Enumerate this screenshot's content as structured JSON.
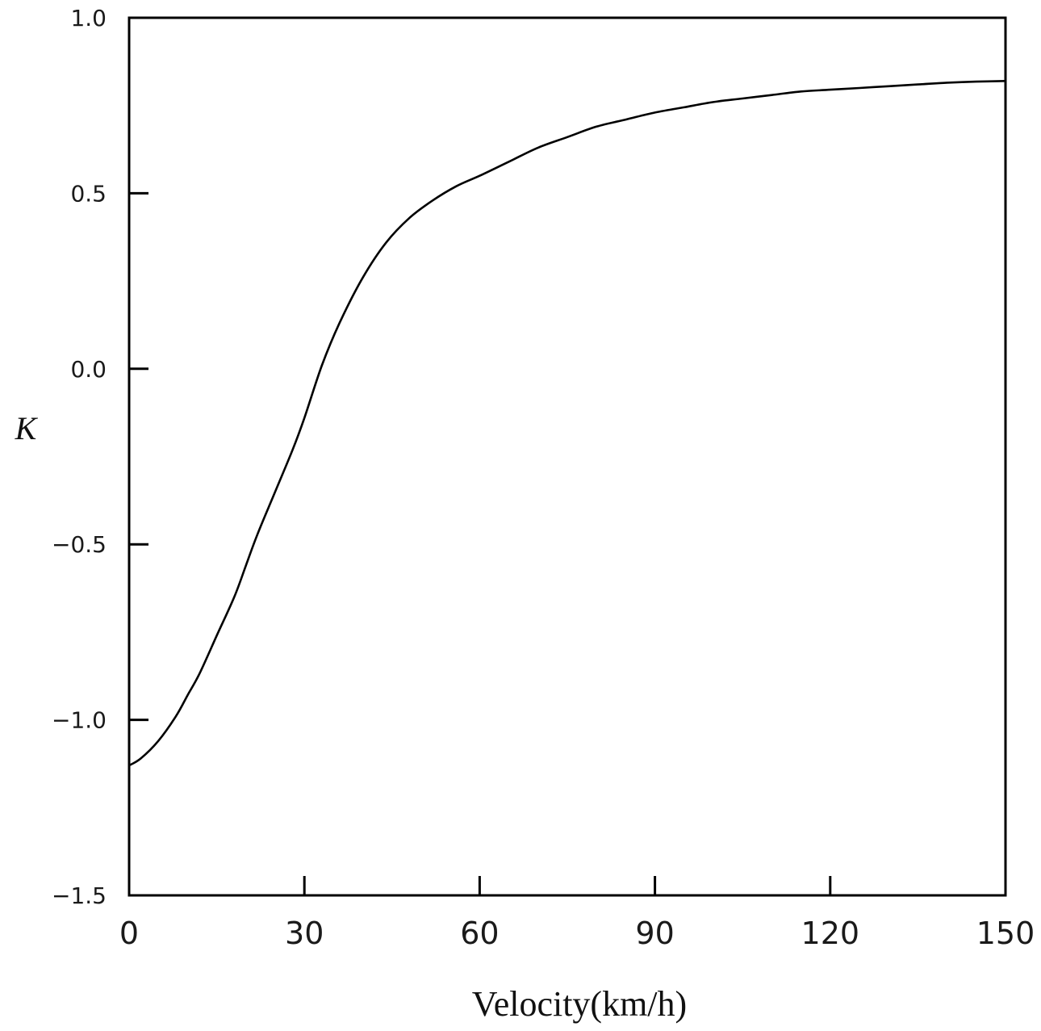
{
  "chart_data": {
    "type": "line",
    "title": "",
    "xlabel": "Velocity(km/h)",
    "ylabel": "K",
    "xlim": [
      0,
      150
    ],
    "ylim": [
      -1.5,
      1.0
    ],
    "x_ticks": [
      0,
      30,
      60,
      90,
      120,
      150
    ],
    "x_tick_labels": [
      "0",
      "30",
      "60",
      "90",
      "120",
      "150"
    ],
    "y_ticks": [
      1.0,
      0.5,
      0.0,
      -0.5,
      -1.0,
      -1.5
    ],
    "y_tick_labels": [
      "1.0",
      "0.5",
      "0.0",
      "−0.5",
      "−1.0",
      "−1.5"
    ],
    "grid": false,
    "series": [
      {
        "color": "#000000",
        "x": [
          0,
          2,
          5,
          8,
          10,
          12,
          15,
          18,
          20,
          22,
          25,
          28,
          30,
          33,
          36,
          40,
          44,
          48,
          52,
          56,
          60,
          65,
          70,
          75,
          80,
          85,
          90,
          95,
          100,
          105,
          110,
          115,
          120,
          125,
          130,
          135,
          140,
          145,
          150
        ],
        "y": [
          -1.13,
          -1.11,
          -1.06,
          -0.99,
          -0.93,
          -0.87,
          -0.76,
          -0.65,
          -0.56,
          -0.47,
          -0.35,
          -0.23,
          -0.14,
          0.01,
          0.13,
          0.26,
          0.36,
          0.43,
          0.48,
          0.52,
          0.55,
          0.59,
          0.63,
          0.66,
          0.69,
          0.71,
          0.73,
          0.745,
          0.76,
          0.77,
          0.78,
          0.79,
          0.795,
          0.8,
          0.805,
          0.81,
          0.815,
          0.818,
          0.82
        ]
      }
    ]
  }
}
